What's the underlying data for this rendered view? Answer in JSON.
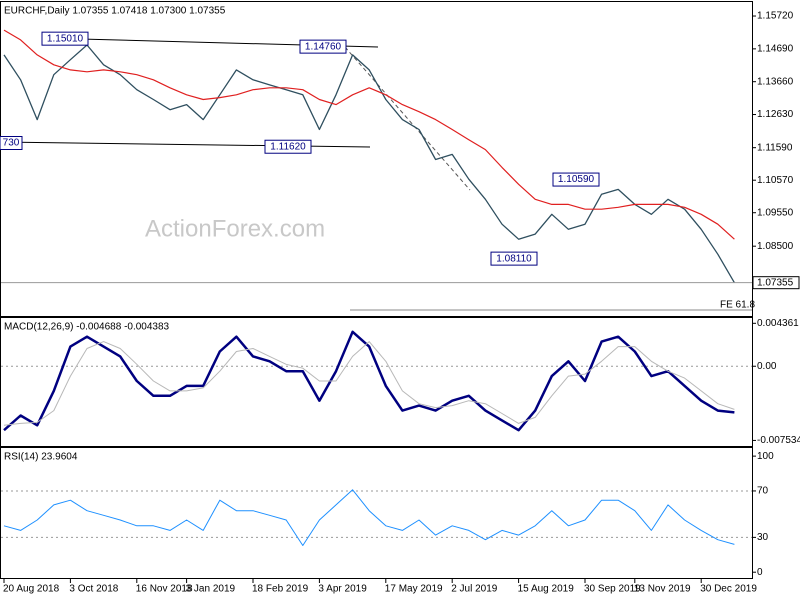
{
  "chart_data": [
    {
      "type": "line",
      "title": "EURCHF,Daily  1.07355 1.07418 1.07300 1.07355",
      "watermark": "ActionForex.com",
      "ylim": [
        1.0631,
        1.1616
      ],
      "yticks": [
        {
          "value": 1.1572,
          "label": "1.15720"
        },
        {
          "value": 1.1469,
          "label": "1.14690"
        },
        {
          "value": 1.1366,
          "label": "1.13660"
        },
        {
          "value": 1.1263,
          "label": "1.12630"
        },
        {
          "value": 1.1159,
          "label": "1.11590"
        },
        {
          "value": 1.1057,
          "label": "1.10570"
        },
        {
          "value": 1.0955,
          "label": "1.09550"
        },
        {
          "value": 1.085,
          "label": "1.08500"
        }
      ],
      "last_price": 1.07355,
      "series": [
        {
          "color": "#2f4f5f",
          "values": [
            1.145,
            1.1372,
            1.1247,
            1.1388,
            1.1435,
            1.1481,
            1.1419,
            1.1388,
            1.1341,
            1.131,
            1.1278,
            1.1294,
            1.1247,
            1.1325,
            1.1403,
            1.1372,
            1.1356,
            1.1341,
            1.1325,
            1.1216,
            1.1325,
            1.145,
            1.1403,
            1.131,
            1.1247,
            1.1216,
            1.1122,
            1.1138,
            1.106,
            1.0997,
            1.0919,
            1.0872,
            1.0888,
            1.095,
            1.0903,
            1.0919,
            1.1013,
            1.1028,
            1.0981,
            1.095,
            1.0997,
            1.0966,
            1.0903,
            1.0825,
            1.07355
          ]
        },
        {
          "color": "#e02020",
          "values": [
            1.1528,
            1.1497,
            1.145,
            1.1419,
            1.1403,
            1.1397,
            1.1403,
            1.1397,
            1.1388,
            1.1372,
            1.1347,
            1.1325,
            1.131,
            1.1316,
            1.1325,
            1.1341,
            1.1347,
            1.1347,
            1.1341,
            1.131,
            1.1294,
            1.1325,
            1.1347,
            1.1325,
            1.1294,
            1.1272,
            1.1247,
            1.1216,
            1.1184,
            1.1153,
            1.1097,
            1.1044,
            1.0997,
            1.0981,
            1.0981,
            1.0966,
            1.0966,
            1.0972,
            1.0981,
            1.0981,
            1.0981,
            1.0972,
            1.095,
            1.0919,
            1.0872
          ]
        }
      ],
      "annotations": [
        {
          "label": "1.15010",
          "value": 1.1501
        },
        {
          "label": "1.14760",
          "value": 1.1476
        },
        {
          "label": "1.11620",
          "value": 1.1162
        },
        {
          "label": "730"
        },
        {
          "label": "1.10590",
          "value": 1.1059
        },
        {
          "label": "1.08110",
          "value": 1.0811
        }
      ],
      "fe_label": "FE 61.8"
    },
    {
      "type": "line",
      "title": "MACD(12,26,9) -0.004688 -0.004383",
      "ylim": [
        -0.0081,
        0.0049
      ],
      "yticks": [
        0.004361,
        {
          "value": 0,
          "label": "0.00"
        },
        -0.007534
      ],
      "dashed_levels": [
        0
      ],
      "series": [
        {
          "color": "#000080",
          "values": [
            -0.0065,
            -0.005,
            -0.006,
            -0.0025,
            0.002,
            0.003,
            0.002,
            0.001,
            -0.0015,
            -0.003,
            -0.003,
            -0.002,
            -0.002,
            0.0015,
            0.003,
            0.001,
            0.0005,
            -0.0005,
            -0.0005,
            -0.0035,
            -0.0005,
            0.0035,
            0.002,
            -0.002,
            -0.0045,
            -0.004,
            -0.0045,
            -0.0035,
            -0.003,
            -0.0045,
            -0.0055,
            -0.0065,
            -0.0045,
            -0.001,
            0.0005,
            -0.0015,
            0.0025,
            0.003,
            0.0015,
            -0.001,
            -0.0005,
            -0.002,
            -0.0035,
            -0.0045,
            -0.004688
          ]
        },
        {
          "color": "#b8b8b8",
          "values": [
            -0.006,
            -0.0058,
            -0.0057,
            -0.0045,
            -0.001,
            0.0018,
            0.0025,
            0.0018,
            0.0002,
            -0.0015,
            -0.0025,
            -0.0025,
            -0.0022,
            -0.0005,
            0.0015,
            0.0018,
            0.001,
            0.0002,
            -0.0002,
            -0.0015,
            -0.0015,
            0.001,
            0.0025,
            0.0005,
            -0.0025,
            -0.0038,
            -0.0042,
            -0.004,
            -0.0035,
            -0.0038,
            -0.0048,
            -0.0058,
            -0.0052,
            -0.003,
            -0.001,
            -0.0008,
            0.0005,
            0.002,
            0.002,
            0.0005,
            -0.0005,
            -0.0012,
            -0.0025,
            -0.0038,
            -0.004383
          ]
        }
      ]
    },
    {
      "type": "line",
      "title": "RSI(14) 23.9604",
      "ylim": [
        -5,
        107
      ],
      "yticks": [
        100,
        70,
        30,
        0
      ],
      "dashed_levels": [
        70,
        30
      ],
      "categories": [
        "20 Aug 2018",
        null,
        null,
        null,
        "3 Oct 2018",
        null,
        null,
        null,
        "16 Nov 2018",
        null,
        null,
        "3 Jan 2019",
        null,
        null,
        null,
        "18 Feb 2019",
        null,
        null,
        null,
        "3 Apr 2019",
        null,
        null,
        null,
        "17 May 2019",
        null,
        null,
        null,
        "2 Jul 2019",
        null,
        null,
        null,
        "15 Aug 2019",
        null,
        null,
        null,
        "30 Sep 2019",
        null,
        null,
        "13 Nov 2019",
        null,
        null,
        null,
        "30 Dec 2019",
        null,
        null
      ],
      "series": [
        {
          "color": "#1e90ff",
          "values": [
            40,
            36,
            45,
            58,
            62,
            53,
            49,
            45,
            40,
            40,
            36,
            45,
            36,
            62,
            53,
            53,
            49,
            45,
            23,
            45,
            58,
            71,
            53,
            40,
            36,
            45,
            32,
            40,
            36,
            28,
            36,
            32,
            40,
            53,
            40,
            45,
            62,
            62,
            53,
            36,
            58,
            45,
            36,
            28,
            23.9604
          ]
        }
      ]
    }
  ]
}
